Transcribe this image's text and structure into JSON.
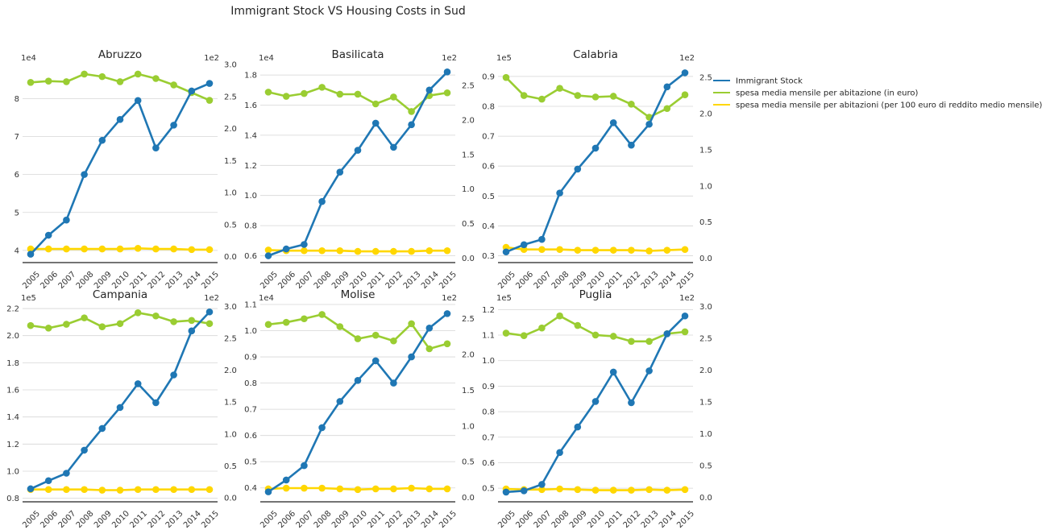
{
  "figure": {
    "title": "Immigrant Stock VS Housing Costs in Sud"
  },
  "legend": {
    "placement": "right",
    "entries": [
      {
        "label": "Immigrant Stock",
        "color": "#1f77b4"
      },
      {
        "label": "spesa media mensile per abitazione (in euro)",
        "color": "#9acd32"
      },
      {
        "label": "spesa media mensile per abitazioni (per 100 euro di reddito medio mensile)",
        "color": "#ffd700"
      }
    ]
  },
  "chart_data": [
    {
      "type": "line",
      "title": "Abruzzo",
      "x": [
        "2005",
        "2006",
        "2007",
        "2008",
        "2009",
        "2010",
        "2011",
        "2012",
        "2013",
        "2014",
        "2015"
      ],
      "left_axis": {
        "multiplier": "1e4",
        "ylim": [
          3.7,
          8.9
        ],
        "ticks": [
          4,
          5,
          6,
          7,
          8
        ],
        "tick_labels": [
          "4",
          "5",
          "6",
          "7",
          "8"
        ]
      },
      "right_axis": {
        "multiplier": "1e2",
        "ylim": [
          -0.08,
          3.0
        ],
        "ticks": [
          0,
          0.5,
          1,
          1.5,
          2,
          2.5,
          3
        ],
        "tick_labels": [
          "0.0",
          "0.5",
          "1.0",
          "1.5",
          "2.0",
          "2.5",
          "3.0"
        ]
      },
      "series": [
        {
          "name": "Immigrant Stock",
          "axis": "left",
          "values": [
            3.9,
            4.4,
            4.8,
            6.0,
            6.9,
            7.45,
            7.95,
            6.7,
            7.3,
            8.2,
            8.4
          ]
        },
        {
          "name": "spesa media mensile per abitazione (in euro)",
          "axis": "right",
          "values": [
            2.72,
            2.74,
            2.73,
            2.85,
            2.81,
            2.73,
            2.85,
            2.78,
            2.68,
            2.56,
            2.44
          ]
        },
        {
          "name": "spesa media mensile per abitazioni (per 100 euro di reddito medio mensile)",
          "axis": "right",
          "values": [
            0.12,
            0.12,
            0.12,
            0.12,
            0.12,
            0.12,
            0.13,
            0.12,
            0.12,
            0.11,
            0.11
          ]
        }
      ]
    },
    {
      "type": "line",
      "title": "Basilicata",
      "x": [
        "2005",
        "2006",
        "2007",
        "2008",
        "2009",
        "2010",
        "2011",
        "2012",
        "2013",
        "2014",
        "2015"
      ],
      "left_axis": {
        "multiplier": "1e4",
        "ylim": [
          0.56,
          1.87
        ],
        "ticks": [
          0.6,
          0.8,
          1.0,
          1.2,
          1.4,
          1.6,
          1.8
        ],
        "tick_labels": [
          "0.6",
          "0.8",
          "1.0",
          "1.2",
          "1.4",
          "1.6",
          "1.8"
        ]
      },
      "right_axis": {
        "multiplier": "1e2",
        "ylim": [
          -0.05,
          2.8
        ],
        "ticks": [
          0,
          0.5,
          1,
          1.5,
          2,
          2.5
        ],
        "tick_labels": [
          "0.0",
          "0.5",
          "1.0",
          "1.5",
          "2.0",
          "2.5"
        ]
      },
      "series": [
        {
          "name": "Immigrant Stock",
          "axis": "left",
          "values": [
            0.6,
            0.645,
            0.675,
            0.96,
            1.155,
            1.3,
            1.48,
            1.32,
            1.47,
            1.7,
            1.82
          ]
        },
        {
          "name": "spesa media mensile per abitazione (in euro)",
          "axis": "right",
          "values": [
            2.4,
            2.34,
            2.38,
            2.47,
            2.37,
            2.37,
            2.23,
            2.33,
            2.12,
            2.35,
            2.39
          ]
        },
        {
          "name": "spesa media mensile per abitazioni (per 100 euro di reddito medio mensile)",
          "axis": "right",
          "values": [
            0.12,
            0.11,
            0.11,
            0.11,
            0.11,
            0.1,
            0.1,
            0.1,
            0.1,
            0.11,
            0.11
          ]
        }
      ]
    },
    {
      "type": "line",
      "title": "Calabria",
      "x": [
        "2005",
        "2006",
        "2007",
        "2008",
        "2009",
        "2010",
        "2011",
        "2012",
        "2013",
        "2014",
        "2015"
      ],
      "left_axis": {
        "multiplier": "1e5",
        "ylim": [
          0.28,
          0.94
        ],
        "ticks": [
          0.3,
          0.4,
          0.5,
          0.6,
          0.7,
          0.8,
          0.9
        ],
        "tick_labels": [
          "0.3",
          "0.4",
          "0.5",
          "0.6",
          "0.7",
          "0.8",
          "0.9"
        ]
      },
      "right_axis": {
        "multiplier": "1e2",
        "ylim": [
          -0.05,
          2.68
        ],
        "ticks": [
          0,
          0.5,
          1,
          1.5,
          2,
          2.5
        ],
        "tick_labels": [
          "0.0",
          "0.5",
          "1.0",
          "1.5",
          "2.0",
          "2.5"
        ]
      },
      "series": [
        {
          "name": "Immigrant Stock",
          "axis": "left",
          "values": [
            0.313,
            0.337,
            0.355,
            0.51,
            0.59,
            0.66,
            0.745,
            0.67,
            0.74,
            0.865,
            0.912
          ]
        },
        {
          "name": "spesa media mensile per abitazione (in euro)",
          "axis": "right",
          "values": [
            2.5,
            2.25,
            2.2,
            2.35,
            2.25,
            2.23,
            2.24,
            2.13,
            1.95,
            2.07,
            2.26
          ]
        },
        {
          "name": "spesa media mensile per abitazioni (per 100 euro di reddito medio mensile)",
          "axis": "right",
          "values": [
            0.15,
            0.12,
            0.12,
            0.12,
            0.11,
            0.11,
            0.11,
            0.11,
            0.1,
            0.11,
            0.12
          ]
        }
      ]
    },
    {
      "type": "line",
      "title": "Campania",
      "x": [
        "2005",
        "2006",
        "2007",
        "2008",
        "2009",
        "2010",
        "2011",
        "2012",
        "2013",
        "2014",
        "2015"
      ],
      "left_axis": {
        "multiplier": "1e5",
        "ylim": [
          0.78,
          2.23
        ],
        "ticks": [
          0.8,
          1.0,
          1.2,
          1.4,
          1.6,
          1.8,
          2.0,
          2.2
        ],
        "tick_labels": [
          "0.8",
          "1.0",
          "1.2",
          "1.4",
          "1.6",
          "1.8",
          "2.0",
          "2.2"
        ]
      },
      "right_axis": {
        "multiplier": "1e2",
        "ylim": [
          -0.05,
          3.03
        ],
        "ticks": [
          0,
          0.5,
          1,
          1.5,
          2,
          2.5,
          3
        ],
        "tick_labels": [
          "0.0",
          "0.5",
          "1.0",
          "1.5",
          "2.0",
          "2.5",
          "3.0"
        ]
      },
      "series": [
        {
          "name": "Immigrant Stock",
          "axis": "left",
          "values": [
            0.87,
            0.93,
            0.985,
            1.155,
            1.315,
            1.47,
            1.645,
            1.505,
            1.71,
            2.035,
            2.175
          ]
        },
        {
          "name": "spesa media mensile per abitazione (in euro)",
          "axis": "right",
          "values": [
            2.7,
            2.66,
            2.72,
            2.82,
            2.68,
            2.73,
            2.9,
            2.85,
            2.76,
            2.78,
            2.73
          ]
        },
        {
          "name": "spesa media mensile per abitazioni (per 100 euro di reddito medio mensile)",
          "axis": "right",
          "values": [
            0.13,
            0.13,
            0.13,
            0.13,
            0.12,
            0.12,
            0.13,
            0.13,
            0.13,
            0.13,
            0.13
          ]
        }
      ]
    },
    {
      "type": "line",
      "title": "Molise",
      "x": [
        "2005",
        "2006",
        "2007",
        "2008",
        "2009",
        "2010",
        "2011",
        "2012",
        "2013",
        "2014",
        "2015"
      ],
      "left_axis": {
        "multiplier": "1e4",
        "ylim": [
          0.35,
          1.1
        ],
        "ticks": [
          0.4,
          0.5,
          0.6,
          0.7,
          0.8,
          0.9,
          1.0,
          1.1
        ],
        "tick_labels": [
          "0.4",
          "0.5",
          "0.6",
          "0.7",
          "0.8",
          "0.9",
          "1.0",
          "1.1"
        ]
      },
      "right_axis": {
        "multiplier": "1e2",
        "ylim": [
          -0.05,
          2.7
        ],
        "ticks": [
          0,
          0.5,
          1,
          1.5,
          2,
          2.5
        ],
        "tick_labels": [
          "0.0",
          "0.5",
          "1.0",
          "1.5",
          "2.0",
          "2.5"
        ]
      },
      "series": [
        {
          "name": "Immigrant Stock",
          "axis": "left",
          "values": [
            0.385,
            0.43,
            0.485,
            0.63,
            0.73,
            0.81,
            0.885,
            0.8,
            0.9,
            1.01,
            1.065
          ]
        },
        {
          "name": "spesa media mensile per abitazione (in euro)",
          "axis": "right",
          "values": [
            2.42,
            2.45,
            2.5,
            2.56,
            2.39,
            2.22,
            2.27,
            2.19,
            2.43,
            2.08,
            2.15
          ]
        },
        {
          "name": "spesa media mensile per abitazioni (per 100 euro di reddito medio mensile)",
          "axis": "right",
          "values": [
            0.12,
            0.13,
            0.13,
            0.13,
            0.12,
            0.11,
            0.12,
            0.12,
            0.13,
            0.12,
            0.12
          ]
        }
      ]
    },
    {
      "type": "line",
      "title": "Puglia",
      "x": [
        "2005",
        "2006",
        "2007",
        "2008",
        "2009",
        "2010",
        "2011",
        "2012",
        "2013",
        "2014",
        "2015"
      ],
      "left_axis": {
        "multiplier": "1e5",
        "ylim": [
          0.45,
          1.22
        ],
        "ticks": [
          0.5,
          0.6,
          0.7,
          0.8,
          0.9,
          1.0,
          1.1,
          1.2
        ],
        "tick_labels": [
          "0.5",
          "0.6",
          "0.7",
          "0.8",
          "0.9",
          "1.0",
          "1.1",
          "1.2"
        ]
      },
      "right_axis": {
        "multiplier": "1e2",
        "ylim": [
          -0.06,
          3.03
        ],
        "ticks": [
          0,
          0.5,
          1,
          1.5,
          2,
          2.5,
          3
        ],
        "tick_labels": [
          "0.0",
          "0.5",
          "1.0",
          "1.5",
          "2.0",
          "2.5",
          "3.0"
        ]
      },
      "series": [
        {
          "name": "Immigrant Stock",
          "axis": "left",
          "values": [
            0.485,
            0.49,
            0.515,
            0.64,
            0.74,
            0.84,
            0.955,
            0.835,
            0.96,
            1.105,
            1.175
          ]
        },
        {
          "name": "spesa media mensile per abitazione (in euro)",
          "axis": "right",
          "values": [
            2.58,
            2.54,
            2.66,
            2.85,
            2.7,
            2.55,
            2.53,
            2.45,
            2.45,
            2.57,
            2.6
          ]
        },
        {
          "name": "spesa media mensile per abitazioni (per 100 euro di reddito medio mensile)",
          "axis": "right",
          "values": [
            0.13,
            0.12,
            0.12,
            0.13,
            0.12,
            0.11,
            0.11,
            0.11,
            0.12,
            0.11,
            0.12
          ]
        }
      ]
    }
  ]
}
